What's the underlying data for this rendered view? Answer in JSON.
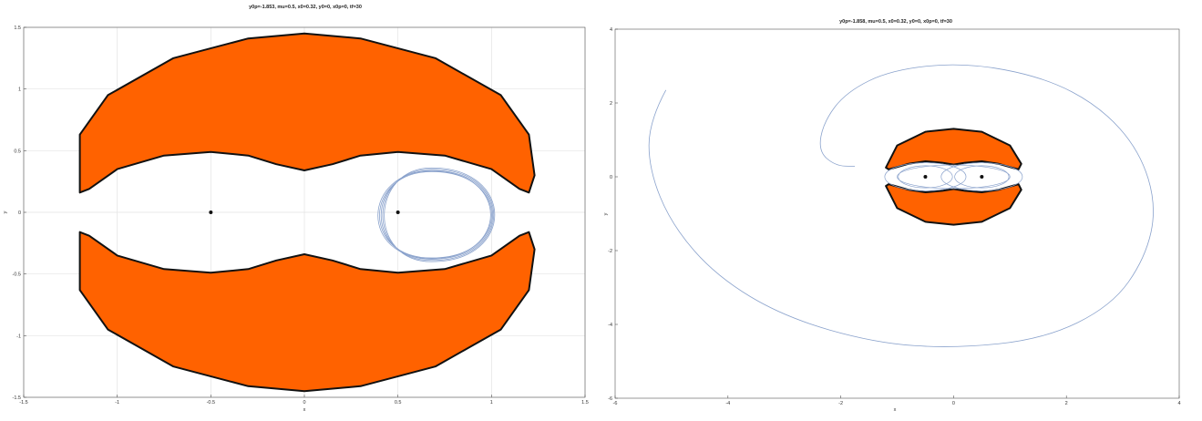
{
  "colors": {
    "region_fill": "#ff6200",
    "trajectory": "#8aa2cc",
    "primary": "#111111"
  },
  "chart_data": [
    {
      "type": "area",
      "title": "y0p=-1.853, mu=0.5, x0=0.32, y0=0, x0p=0, tf=30",
      "xlabel": "x",
      "ylabel": "y",
      "xlim": [
        -1.5,
        1.5
      ],
      "ylim": [
        -1.5,
        1.5
      ],
      "xticks": [
        "-1.5",
        "-1",
        "-0.5",
        "0",
        "0.5",
        "1",
        "1.5"
      ],
      "yticks": [
        "-1.5",
        "-1",
        "-0.5",
        "0",
        "0.5",
        "1",
        "1.5"
      ],
      "grid": true,
      "primaries": [
        {
          "x": -0.5,
          "y": 0
        },
        {
          "x": 0.5,
          "y": 0
        }
      ],
      "forbidden_region": {
        "upper": [
          [
            -1.2,
            0.63
          ],
          [
            -1.05,
            0.95
          ],
          [
            -0.7,
            1.25
          ],
          [
            -0.3,
            1.41
          ],
          [
            0,
            1.45
          ],
          [
            0.3,
            1.41
          ],
          [
            0.7,
            1.25
          ],
          [
            1.05,
            0.95
          ],
          [
            1.2,
            0.63
          ],
          [
            1.23,
            0.3
          ],
          [
            1.2,
            0.16
          ],
          [
            1.15,
            0.19
          ],
          [
            1.0,
            0.35
          ],
          [
            0.75,
            0.46
          ],
          [
            0.5,
            0.49
          ],
          [
            0.3,
            0.46
          ],
          [
            0.15,
            0.39
          ],
          [
            0,
            0.34
          ],
          [
            -0.15,
            0.39
          ],
          [
            -0.3,
            0.46
          ],
          [
            -0.5,
            0.49
          ],
          [
            -0.75,
            0.46
          ],
          [
            -1.0,
            0.35
          ],
          [
            -1.15,
            0.19
          ],
          [
            -1.2,
            0.16
          ]
        ],
        "lower": [
          [
            -1.2,
            -0.63
          ],
          [
            -1.05,
            -0.95
          ],
          [
            -0.7,
            -1.25
          ],
          [
            -0.3,
            -1.41
          ],
          [
            0,
            -1.45
          ],
          [
            0.3,
            -1.41
          ],
          [
            0.7,
            -1.25
          ],
          [
            1.05,
            -0.95
          ],
          [
            1.2,
            -0.63
          ],
          [
            1.23,
            -0.3
          ],
          [
            1.2,
            -0.16
          ],
          [
            1.15,
            -0.19
          ],
          [
            1.0,
            -0.35
          ],
          [
            0.75,
            -0.46
          ],
          [
            0.5,
            -0.49
          ],
          [
            0.3,
            -0.46
          ],
          [
            0.15,
            -0.39
          ],
          [
            0,
            -0.34
          ],
          [
            -0.15,
            -0.39
          ],
          [
            -0.3,
            -0.46
          ],
          [
            -0.5,
            -0.49
          ],
          [
            -0.75,
            -0.46
          ],
          [
            -1.0,
            -0.35
          ],
          [
            -1.15,
            -0.19
          ],
          [
            -1.2,
            -0.16
          ]
        ]
      },
      "trajectory": {
        "center": [
          0.68,
          -0.02
        ],
        "loops": [
          {
            "rx_left": 0.32,
            "rx_right": 0.3,
            "ry": 0.36
          },
          {
            "rx_left": 0.31,
            "rx_right": 0.305,
            "ry": 0.37
          },
          {
            "rx_left": 0.33,
            "rx_right": 0.295,
            "ry": 0.35
          },
          {
            "rx_left": 0.3,
            "rx_right": 0.31,
            "ry": 0.38
          },
          {
            "rx_left": 0.34,
            "rx_right": 0.29,
            "ry": 0.355
          }
        ]
      }
    },
    {
      "type": "area",
      "title": "y0p=-1.858, mu=0.5, x0=0.32, y0=0, x0p=0, tf=30",
      "xlabel": "x",
      "ylabel": "y",
      "xlim": [
        -6,
        4
      ],
      "ylim": [
        -6,
        4
      ],
      "xticks": [
        "-6",
        "-4",
        "-2",
        "0",
        "2",
        "4"
      ],
      "yticks": [
        "-6",
        "-4",
        "-2",
        "0",
        "2",
        "4"
      ],
      "grid": false,
      "primaries": [
        {
          "x": -0.5,
          "y": 0
        },
        {
          "x": 0.5,
          "y": 0
        }
      ],
      "forbidden_region": {
        "upper": [
          [
            -1.2,
            0.25
          ],
          [
            -1.0,
            0.85
          ],
          [
            -0.5,
            1.22
          ],
          [
            0,
            1.3
          ],
          [
            0.5,
            1.22
          ],
          [
            1.0,
            0.85
          ],
          [
            1.2,
            0.35
          ],
          [
            1.15,
            0.2
          ],
          [
            0.8,
            0.35
          ],
          [
            0.5,
            0.42
          ],
          [
            0.2,
            0.38
          ],
          [
            0,
            0.33
          ],
          [
            -0.2,
            0.38
          ],
          [
            -0.5,
            0.42
          ],
          [
            -0.8,
            0.35
          ],
          [
            -1.15,
            0.2
          ]
        ],
        "lower": [
          [
            -1.2,
            -0.25
          ],
          [
            -1.0,
            -0.85
          ],
          [
            -0.5,
            -1.22
          ],
          [
            0,
            -1.3
          ],
          [
            0.5,
            -1.22
          ],
          [
            1.0,
            -0.85
          ],
          [
            1.2,
            -0.35
          ],
          [
            1.15,
            -0.2
          ],
          [
            0.8,
            -0.35
          ],
          [
            0.5,
            -0.42
          ],
          [
            0.2,
            -0.38
          ],
          [
            0,
            -0.33
          ],
          [
            -0.2,
            -0.38
          ],
          [
            -0.5,
            -0.42
          ],
          [
            -0.8,
            -0.35
          ],
          [
            -1.15,
            -0.2
          ]
        ]
      },
      "trajectory": {
        "spiral": [
          [
            -5.1,
            2.35
          ],
          [
            -5.4,
            1.5
          ],
          [
            -5.4,
            0.2
          ],
          [
            -5.0,
            -1.3
          ],
          [
            -4.2,
            -2.7
          ],
          [
            -3.0,
            -3.8
          ],
          [
            -1.4,
            -4.5
          ],
          [
            0,
            -4.65
          ],
          [
            1.6,
            -4.4
          ],
          [
            2.8,
            -3.5
          ],
          [
            3.4,
            -2.2
          ],
          [
            3.6,
            -0.8
          ],
          [
            3.3,
            0.7
          ],
          [
            2.6,
            1.9
          ],
          [
            1.6,
            2.7
          ],
          [
            0.2,
            3.1
          ],
          [
            -1.1,
            2.9
          ],
          [
            -1.9,
            2.3
          ],
          [
            -2.3,
            1.5
          ],
          [
            -2.4,
            0.7
          ],
          [
            -2.1,
            0.3
          ],
          [
            -1.75,
            0.28
          ]
        ],
        "inner_loops": [
          [
            -0.5,
            0,
            0.48,
            0.3
          ],
          [
            0.5,
            0,
            0.48,
            0.3
          ],
          [
            0,
            0,
            1.0,
            0.32
          ],
          [
            -0.5,
            0,
            0.72,
            0.38
          ],
          [
            0.5,
            0,
            0.72,
            0.38
          ]
        ]
      }
    }
  ]
}
